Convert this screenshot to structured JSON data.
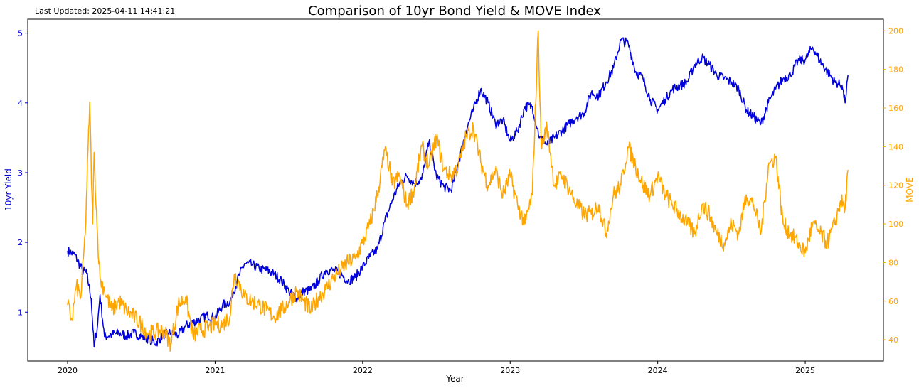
{
  "last_updated": "Last Updated: 2025-04-11 14:41:21",
  "chart_data": {
    "type": "line",
    "title": "Comparison of 10yr Bond Yield & MOVE Index",
    "xlabel": "Year",
    "ylabel_left": "10yr Yield",
    "ylabel_right": "MOVE",
    "x_ticks": [
      {
        "label": "2020",
        "value": 2020.0
      },
      {
        "label": "2021",
        "value": 2021.0
      },
      {
        "label": "2022",
        "value": 2022.0
      },
      {
        "label": "2023",
        "value": 2023.0
      },
      {
        "label": "2024",
        "value": 2024.0
      },
      {
        "label": "2025",
        "value": 2025.0
      }
    ],
    "xlim": [
      2019.73,
      2025.53
    ],
    "ylim_left": [
      0.3,
      5.2
    ],
    "yticks_left": [
      1,
      2,
      3,
      4,
      5
    ],
    "ylim_right": [
      29,
      206
    ],
    "yticks_right": [
      40,
      60,
      80,
      100,
      120,
      140,
      160,
      180,
      200
    ],
    "grid": false,
    "colors": {
      "yield": "#0000dd",
      "move": "#ffa500"
    },
    "series": [
      {
        "axis": "left",
        "x": [
          2020.0,
          2020.05,
          2020.1,
          2020.13,
          2020.16,
          2020.18,
          2020.2,
          2020.22,
          2020.25,
          2020.3,
          2020.35,
          2020.4,
          2020.45,
          2020.5,
          2020.55,
          2020.6,
          2020.65,
          2020.7,
          2020.75,
          2020.8,
          2020.85,
          2020.9,
          2020.95,
          2021.0,
          2021.05,
          2021.1,
          2021.15,
          2021.2,
          2021.25,
          2021.3,
          2021.35,
          2021.4,
          2021.45,
          2021.5,
          2021.55,
          2021.6,
          2021.65,
          2021.7,
          2021.75,
          2021.8,
          2021.85,
          2021.9,
          2021.95,
          2022.0,
          2022.05,
          2022.1,
          2022.15,
          2022.2,
          2022.25,
          2022.3,
          2022.35,
          2022.4,
          2022.45,
          2022.5,
          2022.55,
          2022.6,
          2022.65,
          2022.7,
          2022.75,
          2022.8,
          2022.85,
          2022.9,
          2022.95,
          2023.0,
          2023.05,
          2023.1,
          2023.15,
          2023.2,
          2023.25,
          2023.3,
          2023.35,
          2023.4,
          2023.45,
          2023.5,
          2023.55,
          2023.6,
          2023.65,
          2023.7,
          2023.75,
          2023.8,
          2023.85,
          2023.9,
          2023.95,
          2024.0,
          2024.05,
          2024.1,
          2024.15,
          2024.2,
          2024.25,
          2024.3,
          2024.35,
          2024.4,
          2024.45,
          2024.5,
          2024.55,
          2024.6,
          2024.65,
          2024.7,
          2024.75,
          2024.8,
          2024.85,
          2024.9,
          2024.95,
          2025.0,
          2025.05,
          2025.1,
          2025.15,
          2025.2,
          2025.25,
          2025.27,
          2025.29
        ],
        "y": [
          1.88,
          1.82,
          1.6,
          1.55,
          1.2,
          0.5,
          0.75,
          1.25,
          0.65,
          0.68,
          0.7,
          0.66,
          0.7,
          0.65,
          0.62,
          0.56,
          0.68,
          0.7,
          0.67,
          0.8,
          0.85,
          0.9,
          0.95,
          0.92,
          1.1,
          1.15,
          1.45,
          1.7,
          1.68,
          1.62,
          1.6,
          1.55,
          1.45,
          1.3,
          1.2,
          1.3,
          1.32,
          1.45,
          1.6,
          1.6,
          1.55,
          1.45,
          1.5,
          1.65,
          1.8,
          1.9,
          2.3,
          2.6,
          2.85,
          2.95,
          2.85,
          2.9,
          3.45,
          2.95,
          2.8,
          2.75,
          3.15,
          3.6,
          3.9,
          4.2,
          4.0,
          3.7,
          3.75,
          3.45,
          3.6,
          3.95,
          3.95,
          3.5,
          3.4,
          3.5,
          3.6,
          3.7,
          3.8,
          3.85,
          4.15,
          4.1,
          4.3,
          4.5,
          4.9,
          4.85,
          4.45,
          4.35,
          4.05,
          3.9,
          4.05,
          4.2,
          4.25,
          4.3,
          4.55,
          4.65,
          4.55,
          4.4,
          4.35,
          4.3,
          4.2,
          3.9,
          3.8,
          3.7,
          4.0,
          4.2,
          4.35,
          4.4,
          4.6,
          4.62,
          4.8,
          4.6,
          4.45,
          4.3,
          4.25,
          4.0,
          4.4
        ]
      },
      {
        "axis": "right",
        "x": [
          2020.0,
          2020.03,
          2020.06,
          2020.09,
          2020.12,
          2020.15,
          2020.17,
          2020.18,
          2020.2,
          2020.22,
          2020.25,
          2020.3,
          2020.35,
          2020.4,
          2020.45,
          2020.5,
          2020.55,
          2020.6,
          2020.65,
          2020.7,
          2020.75,
          2020.8,
          2020.85,
          2020.9,
          2020.95,
          2021.0,
          2021.05,
          2021.1,
          2021.13,
          2021.16,
          2021.2,
          2021.25,
          2021.3,
          2021.35,
          2021.4,
          2021.45,
          2021.5,
          2021.55,
          2021.6,
          2021.65,
          2021.7,
          2021.75,
          2021.8,
          2021.85,
          2021.9,
          2021.95,
          2022.0,
          2022.05,
          2022.1,
          2022.15,
          2022.18,
          2022.2,
          2022.25,
          2022.3,
          2022.35,
          2022.4,
          2022.45,
          2022.5,
          2022.55,
          2022.6,
          2022.65,
          2022.7,
          2022.75,
          2022.8,
          2022.85,
          2022.9,
          2022.95,
          2023.0,
          2023.05,
          2023.1,
          2023.15,
          2023.19,
          2023.21,
          2023.25,
          2023.3,
          2023.35,
          2023.4,
          2023.45,
          2023.5,
          2023.55,
          2023.6,
          2023.65,
          2023.7,
          2023.75,
          2023.8,
          2023.85,
          2023.9,
          2023.95,
          2024.0,
          2024.05,
          2024.1,
          2024.15,
          2024.2,
          2024.25,
          2024.3,
          2024.35,
          2024.4,
          2024.45,
          2024.5,
          2024.55,
          2024.6,
          2024.65,
          2024.7,
          2024.75,
          2024.8,
          2024.85,
          2024.9,
          2024.95,
          2025.0,
          2025.05,
          2025.1,
          2025.15,
          2025.2,
          2025.24,
          2025.27,
          2025.29
        ],
        "y": [
          58,
          50,
          68,
          62,
          95,
          163,
          100,
          137,
          98,
          72,
          66,
          55,
          60,
          55,
          52,
          48,
          43,
          44,
          45,
          38,
          58,
          62,
          42,
          45,
          46,
          48,
          48,
          52,
          74,
          70,
          62,
          60,
          58,
          55,
          52,
          55,
          60,
          65,
          60,
          55,
          62,
          66,
          72,
          76,
          80,
          82,
          90,
          100,
          115,
          138,
          130,
          120,
          125,
          110,
          118,
          140,
          130,
          145,
          128,
          125,
          130,
          145,
          150,
          132,
          120,
          128,
          115,
          125,
          110,
          100,
          115,
          200,
          140,
          150,
          120,
          125,
          118,
          110,
          105,
          105,
          110,
          95,
          115,
          120,
          140,
          130,
          120,
          115,
          125,
          115,
          110,
          105,
          100,
          95,
          110,
          105,
          95,
          90,
          100,
          95,
          115,
          110,
          95,
          130,
          135,
          100,
          95,
          90,
          85,
          100,
          95,
          90,
          100,
          112,
          108,
          128
        ]
      }
    ]
  }
}
